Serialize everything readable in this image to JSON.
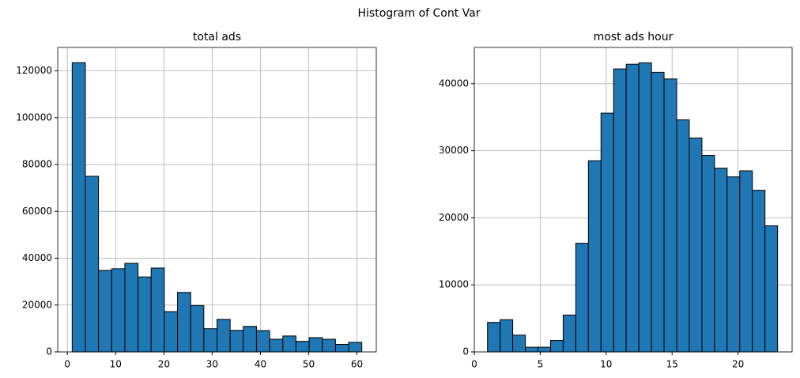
{
  "title": "Histogram of Cont Var",
  "chart_data": [
    {
      "type": "histogram",
      "title": "total ads",
      "color": "#1f77b4",
      "edgecolor": "#000000",
      "grid": true,
      "bins": [
        1,
        3.73,
        6.45,
        9.18,
        11.91,
        14.64,
        17.36,
        20.09,
        22.82,
        25.55,
        28.27,
        31,
        33.73,
        36.45,
        39.18,
        41.91,
        44.64,
        47.36,
        50.09,
        52.82,
        55.55,
        58.27,
        61
      ],
      "counts": [
        123500,
        75000,
        34800,
        35500,
        37800,
        32000,
        35800,
        17200,
        25400,
        19800,
        9900,
        13900,
        9200,
        10900,
        9100,
        5400,
        6800,
        4500,
        6100,
        5400,
        3200,
        4100
      ],
      "xlim": [
        -2,
        64
      ],
      "xticks": [
        0,
        10,
        20,
        30,
        40,
        50,
        60
      ],
      "ylim": [
        0,
        130000
      ],
      "yticks": [
        0,
        20000,
        40000,
        60000,
        80000,
        100000,
        120000
      ]
    },
    {
      "type": "histogram",
      "title": "most ads hour",
      "color": "#1f77b4",
      "edgecolor": "#000000",
      "grid": true,
      "bins": [
        1,
        1.957,
        2.913,
        3.87,
        4.826,
        5.783,
        6.739,
        7.696,
        8.652,
        9.609,
        10.565,
        11.522,
        12.478,
        13.435,
        14.391,
        15.348,
        16.304,
        17.261,
        18.217,
        19.174,
        20.13,
        21.087,
        22.043,
        23
      ],
      "counts": [
        4400,
        4800,
        2500,
        700,
        700,
        1700,
        5500,
        16200,
        28500,
        35600,
        42200,
        42900,
        43100,
        41700,
        40700,
        34600,
        31900,
        29300,
        27400,
        26100,
        27000,
        24100,
        18800
      ],
      "xlim": [
        0,
        24.1
      ],
      "xticks": [
        0,
        5,
        10,
        15,
        20
      ],
      "ylim": [
        0,
        45400
      ],
      "yticks": [
        0,
        10000,
        20000,
        30000,
        40000
      ]
    }
  ]
}
